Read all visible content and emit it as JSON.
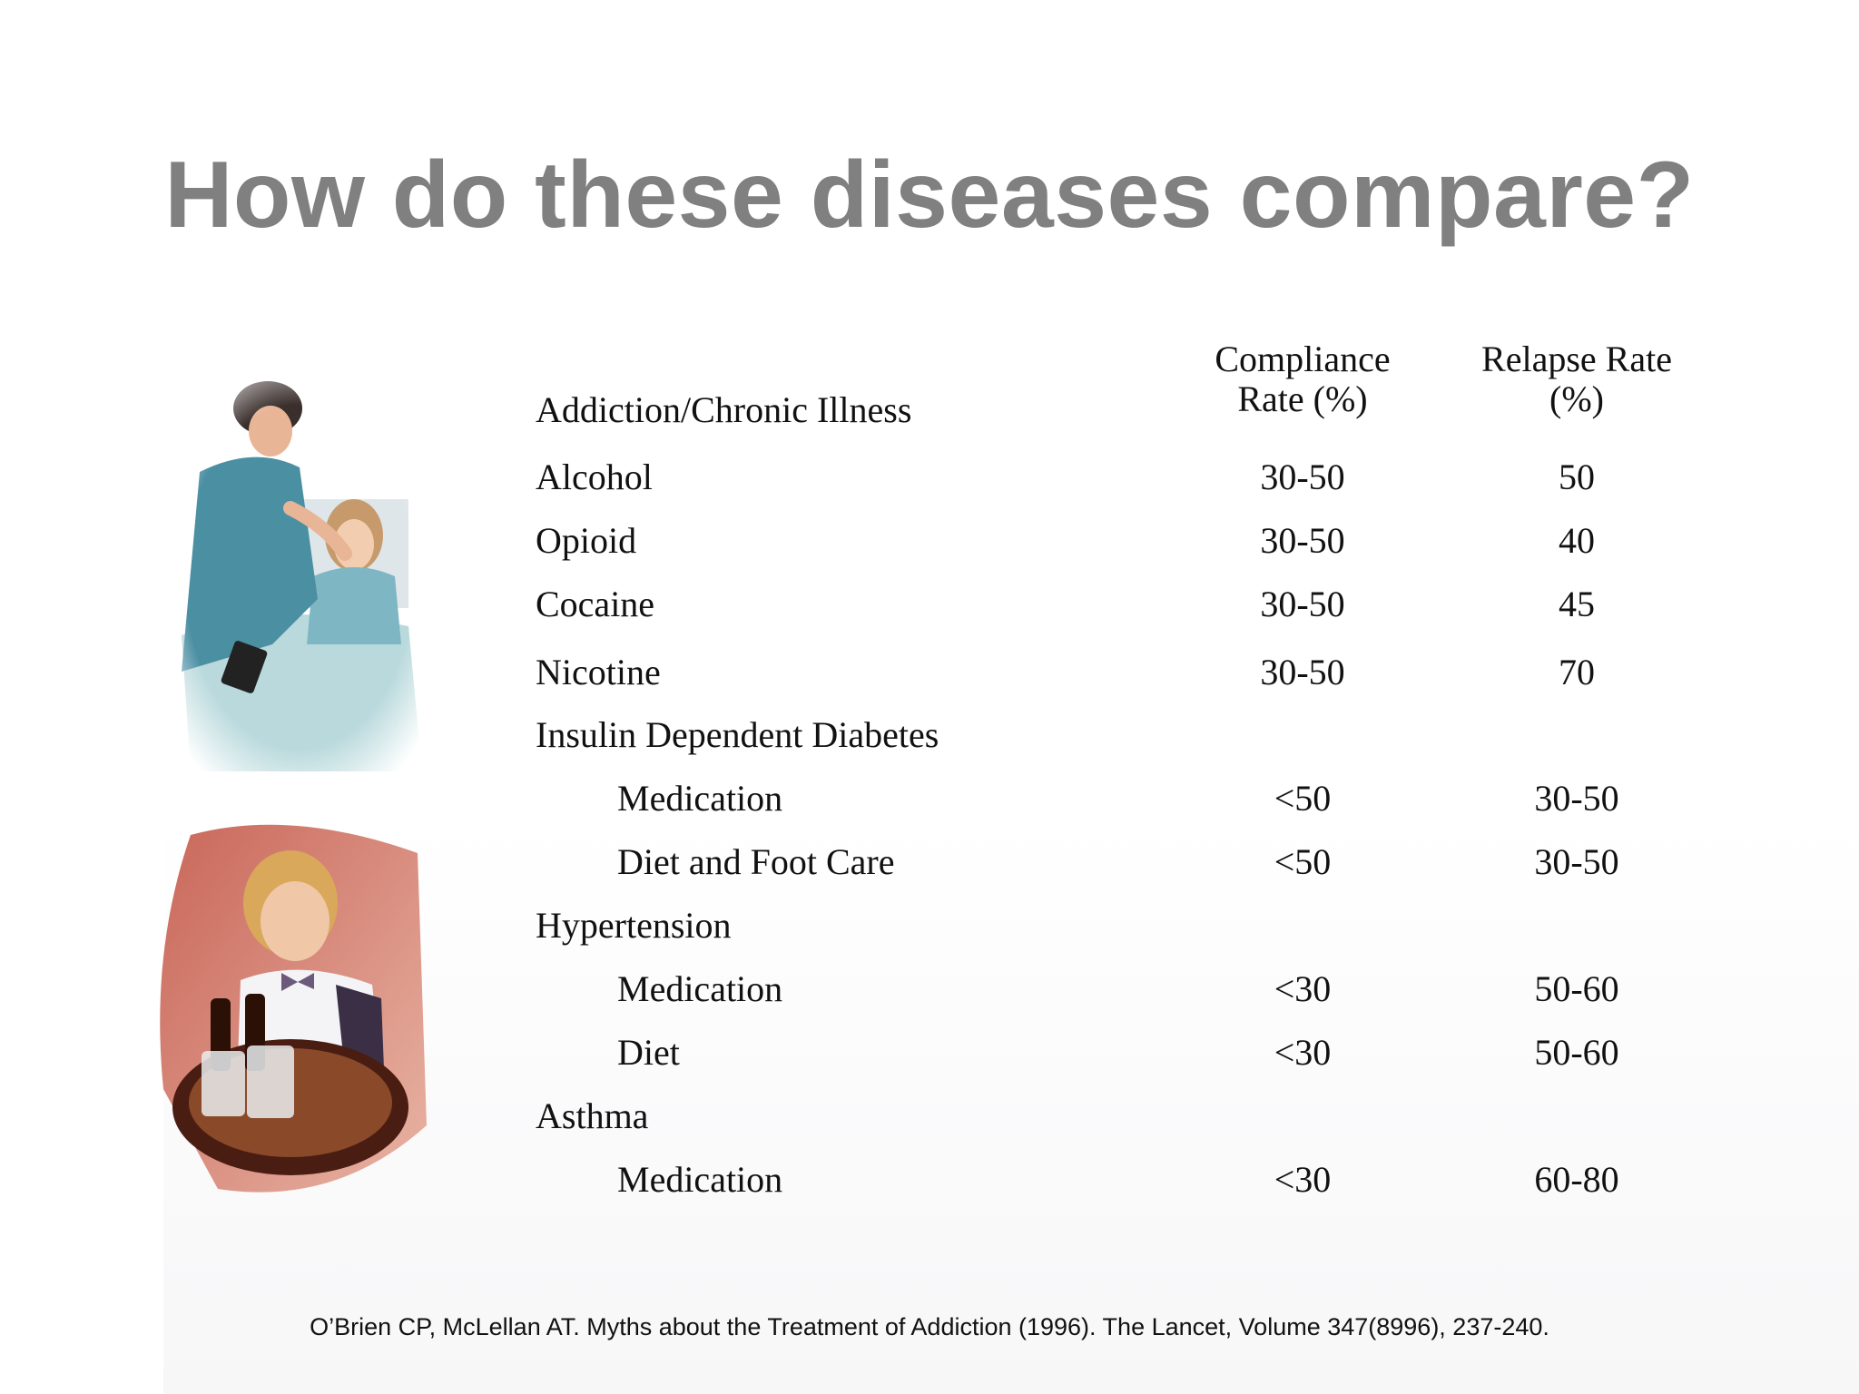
{
  "slide": {
    "title": "How do these diseases compare?"
  },
  "table": {
    "row_header": "Addiction/Chronic Illness",
    "col_headers": {
      "compliance_line1": "Compliance",
      "compliance_line2": "Rate (%)",
      "relapse_line1": "Relapse Rate",
      "relapse_line2": "(%)"
    },
    "rows": [
      {
        "label": "Alcohol",
        "compliance": "30-50",
        "relapse": "50"
      },
      {
        "label": "Opioid",
        "compliance": "30-50",
        "relapse": "40"
      },
      {
        "label": "Cocaine",
        "compliance": "30-50",
        "relapse": "45"
      },
      {
        "label": "Nicotine",
        "compliance": "30-50",
        "relapse": "70"
      },
      {
        "label": "Insulin Dependent Diabetes",
        "compliance": "",
        "relapse": ""
      },
      {
        "label": "Medication",
        "compliance": "<50",
        "relapse": "30-50"
      },
      {
        "label": "Diet and Foot Care",
        "compliance": "<50",
        "relapse": "30-50"
      },
      {
        "label": "Hypertension",
        "compliance": "",
        "relapse": ""
      },
      {
        "label": "Medication",
        "compliance": "<30",
        "relapse": "50-60"
      },
      {
        "label": "Diet",
        "compliance": "<30",
        "relapse": "50-60"
      },
      {
        "label": "Asthma",
        "compliance": "",
        "relapse": ""
      },
      {
        "label": "Medication",
        "compliance": "<30",
        "relapse": "60-80"
      }
    ]
  },
  "citation": "O’Brien CP, McLellan AT. Myths about the Treatment of Addiction (1996). The Lancet, Volume 347(8996), 237-240.",
  "images": {
    "top": "nurse-and-child-photo",
    "bottom": "waitress-with-beer-tray-photo"
  },
  "colors": {
    "title": "#808080",
    "text": "#111111"
  }
}
